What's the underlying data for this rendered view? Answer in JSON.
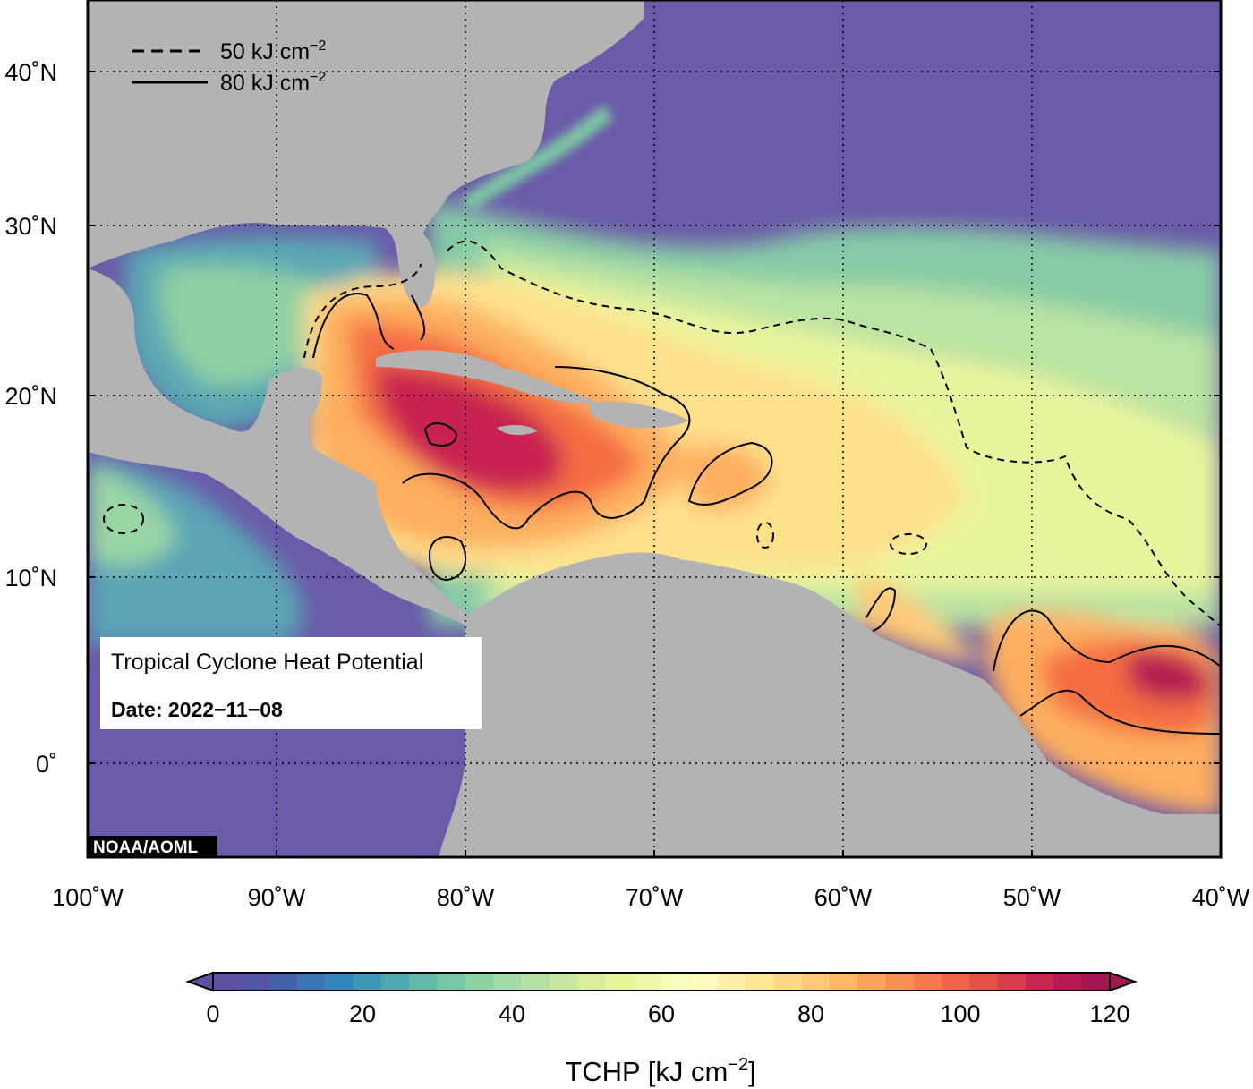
{
  "map": {
    "lat_labels": [
      "40˚N",
      "30˚N",
      "20˚N",
      "10˚N",
      "0˚"
    ],
    "lon_labels": [
      "100˚W",
      "90˚W",
      "80˚W",
      "70˚W",
      "60˚W",
      "50˚W",
      "40˚W"
    ],
    "info_title": "Tropical Cyclone Heat Potential",
    "info_date": "Date: 2022−11−08",
    "credit": "NOAA/AOML",
    "legend": {
      "dashed_value": "50 kJ cm",
      "solid_value": "80 kJ cm",
      "exponent": "−2"
    }
  },
  "colorbar": {
    "ticks": [
      "0",
      "20",
      "40",
      "60",
      "80",
      "100",
      "120"
    ],
    "title_main": "TCHP [kJ cm",
    "title_exp": "−2",
    "title_end": "]",
    "colors": [
      "#5e4fa2",
      "#5254a8",
      "#4561ad",
      "#3b73b3",
      "#3288bd",
      "#3d99b6",
      "#4ea9b0",
      "#63b9a8",
      "#77c6a6",
      "#8cd0a4",
      "#a2d9a4",
      "#b5e1a2",
      "#c7e8a0",
      "#d7ef9b",
      "#e6f598",
      "#eef8a8",
      "#f5fbb9",
      "#fdfbbd",
      "#fef0a8",
      "#fee594",
      "#fed884",
      "#fdc877",
      "#fdb768",
      "#fca45d",
      "#f99055",
      "#f57b4e",
      "#ee6647",
      "#e55148",
      "#d53e4f",
      "#c72850",
      "#b51a52",
      "#a11753"
    ]
  },
  "style": {
    "ocean_cold": "#6a5aa8",
    "land": "#b3b3b3",
    "contour": "#000000"
  }
}
